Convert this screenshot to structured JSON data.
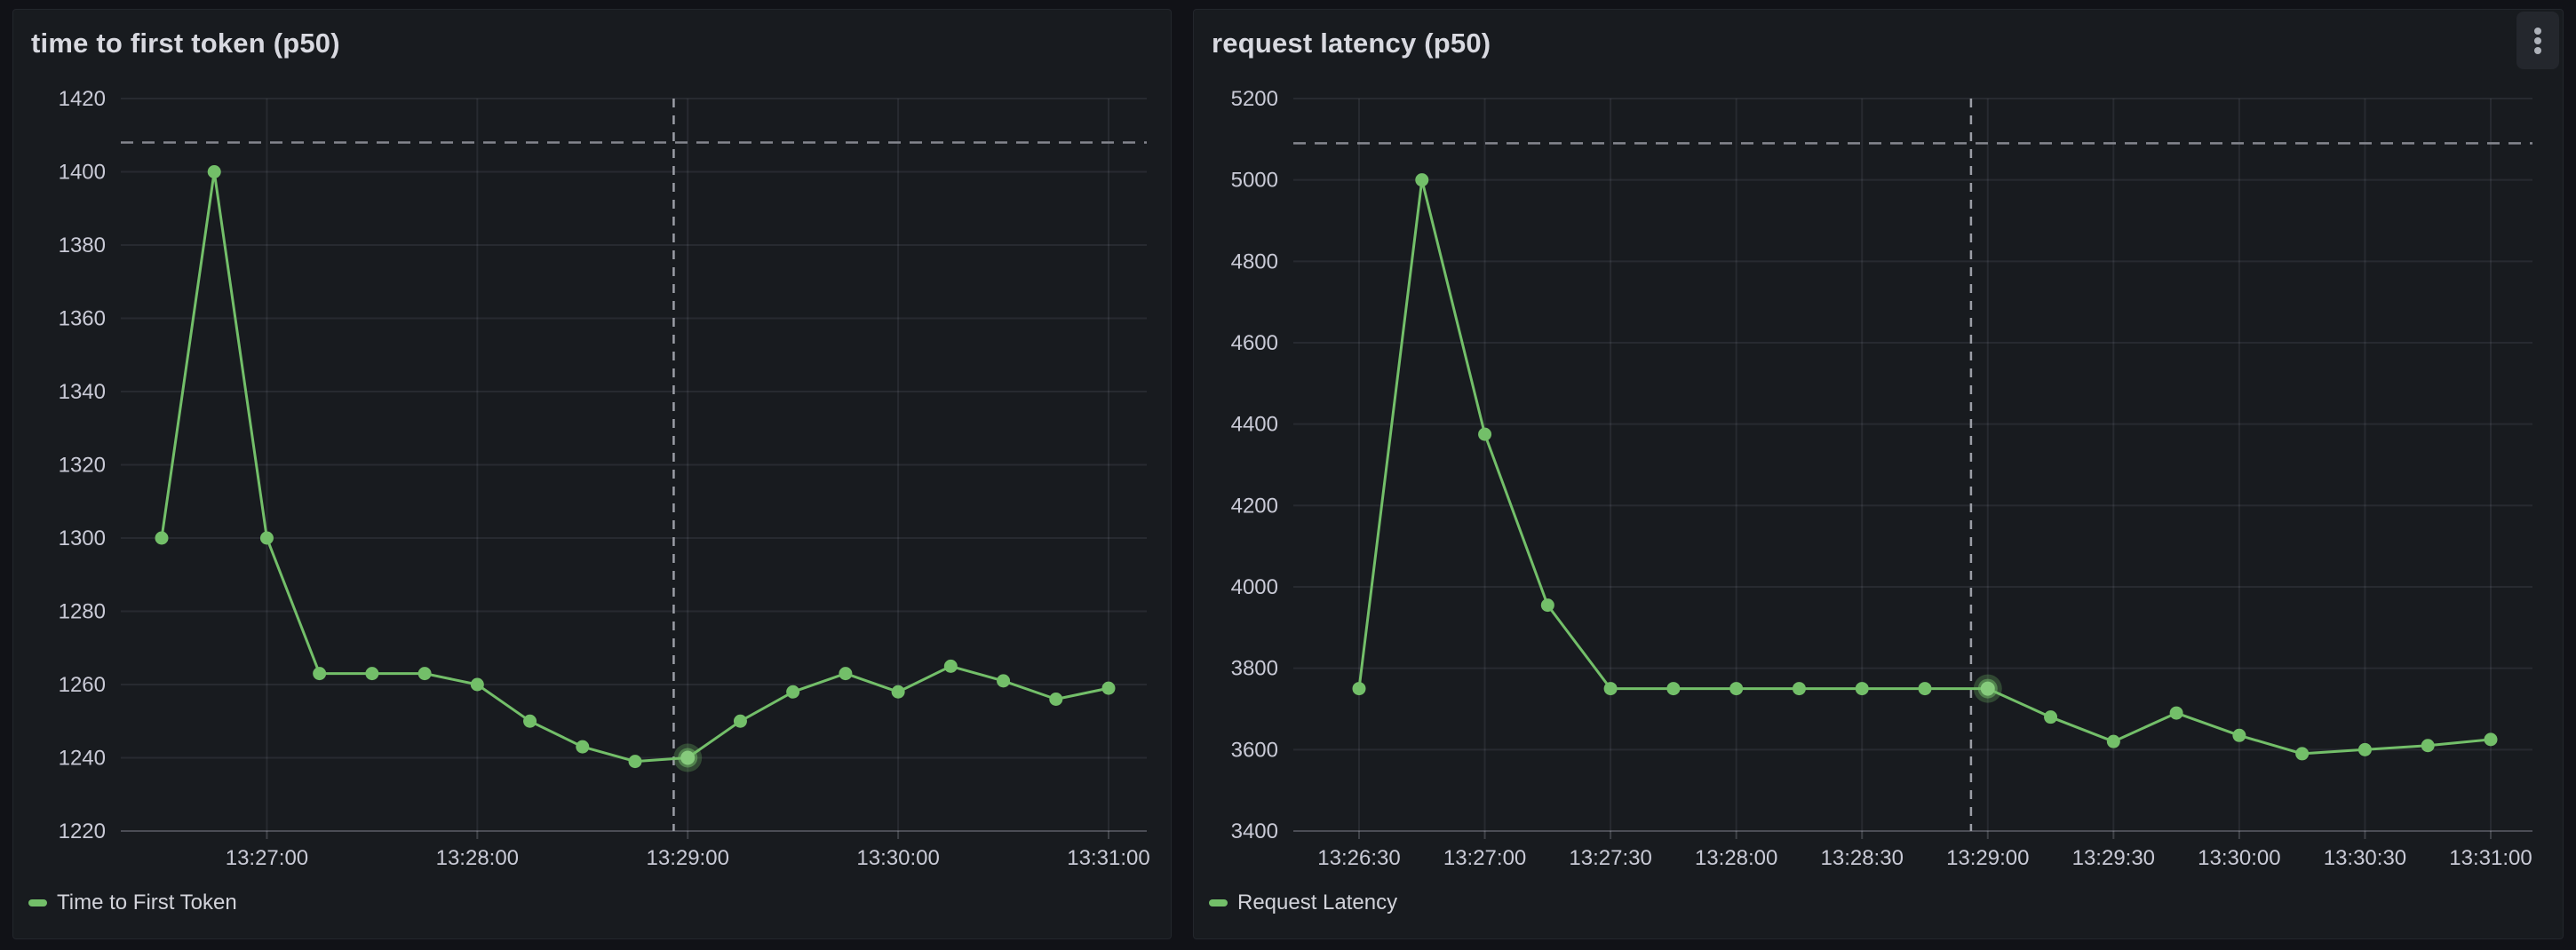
{
  "colors": {
    "page_background": "#111217",
    "panel_background": "#181B1F",
    "series_green": "#73BF69",
    "highlight_core_green": "#86CB7C",
    "axis_text": "#C9CAD6",
    "title_text": "#D8D9E0",
    "threshold_line": "#84868E",
    "crosshair_line": "#9B9EA6"
  },
  "panels": [
    {
      "title": "time to first token (p50)",
      "legend": "Time to First Token",
      "has_kebab_menu": false
    },
    {
      "title": "request latency (p50)",
      "legend": "Request Latency",
      "has_kebab_menu": true
    }
  ],
  "chart_data": [
    {
      "type": "line",
      "title": "time to first token (p50)",
      "series": [
        {
          "name": "Time to First Token",
          "values": [
            1300,
            1400,
            1300,
            1263,
            1263,
            1263,
            1260,
            1250,
            1243,
            1239,
            1240,
            1250,
            1258,
            1263,
            1258,
            1265,
            1261,
            1256,
            1259
          ]
        }
      ],
      "x": [
        "13:26:30",
        "13:26:45",
        "13:27:00",
        "13:27:15",
        "13:27:30",
        "13:27:45",
        "13:28:00",
        "13:28:15",
        "13:28:30",
        "13:28:45",
        "13:29:00",
        "13:29:15",
        "13:29:30",
        "13:29:45",
        "13:30:00",
        "13:30:15",
        "13:30:30",
        "13:30:45",
        "13:31:00"
      ],
      "x_tick_labels": [
        "13:27:00",
        "13:28:00",
        "13:29:00",
        "13:30:00",
        "13:31:00"
      ],
      "ylim": [
        1220,
        1420
      ],
      "y_tick_step": 20,
      "threshold_value": 1408,
      "crosshair_time": "13:28:56",
      "highlight_time": "13:29:00",
      "highlight_value": 1240,
      "line_color": "#73BF69",
      "grid": true,
      "legend_position": "bottom-left",
      "legend_entries": [
        "Time to First Token"
      ]
    },
    {
      "type": "line",
      "title": "request latency (p50)",
      "series": [
        {
          "name": "Request Latency",
          "values": [
            3750,
            5000,
            4375,
            3955,
            3750,
            3750,
            3750,
            3750,
            3750,
            3750,
            3750,
            3680,
            3620,
            3690,
            3635,
            3590,
            3600,
            3610,
            3625
          ]
        }
      ],
      "x": [
        "13:26:30",
        "13:26:45",
        "13:27:00",
        "13:27:15",
        "13:27:30",
        "13:27:45",
        "13:28:00",
        "13:28:15",
        "13:28:30",
        "13:28:45",
        "13:29:00",
        "13:29:15",
        "13:29:30",
        "13:29:45",
        "13:30:00",
        "13:30:15",
        "13:30:30",
        "13:30:45",
        "13:31:00"
      ],
      "x_tick_labels": [
        "13:26:30",
        "13:27:00",
        "13:27:30",
        "13:28:00",
        "13:28:30",
        "13:29:00",
        "13:29:30",
        "13:30:00",
        "13:30:30",
        "13:31:00"
      ],
      "ylim": [
        3400,
        5200
      ],
      "y_tick_step": 200,
      "threshold_value": 5090,
      "crosshair_time": "13:28:56",
      "highlight_time": "13:29:00",
      "highlight_value": 3750,
      "line_color": "#73BF69",
      "grid": true,
      "legend_position": "bottom-left",
      "legend_entries": [
        "Request Latency"
      ]
    }
  ]
}
